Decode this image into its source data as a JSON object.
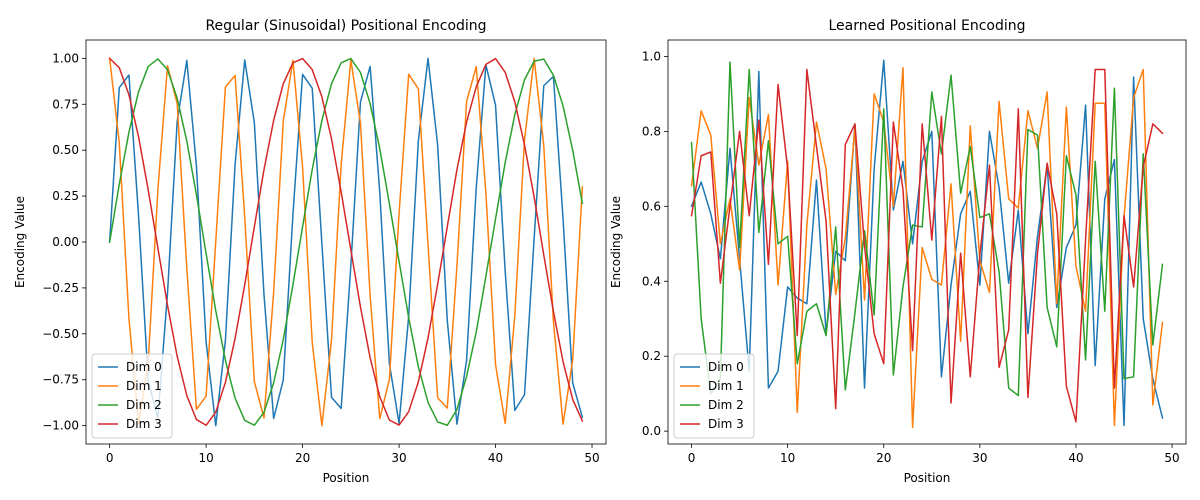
{
  "chart_data": [
    {
      "type": "line",
      "title": "Regular (Sinusoidal) Positional Encoding",
      "xlabel": "Position",
      "ylabel": "Encoding Value",
      "xlim": [
        -2.45,
        51.45
      ],
      "ylim": [
        -1.1,
        1.1
      ],
      "xticks": [
        0,
        10,
        20,
        30,
        40,
        50
      ],
      "yticks": [
        -1.0,
        -0.75,
        -0.5,
        -0.25,
        0.0,
        0.25,
        0.5,
        0.75,
        1.0
      ],
      "xtick_labels": [
        "0",
        "10",
        "20",
        "30",
        "40",
        "50"
      ],
      "ytick_labels": [
        "−1.00",
        "−0.75",
        "−0.50",
        "−0.25",
        "0.00",
        "0.25",
        "0.50",
        "0.75",
        "1.00"
      ],
      "grid": false,
      "legend_position": "lower-left",
      "x": [
        0,
        1,
        2,
        3,
        4,
        5,
        6,
        7,
        8,
        9,
        10,
        11,
        12,
        13,
        14,
        15,
        16,
        17,
        18,
        19,
        20,
        21,
        22,
        23,
        24,
        25,
        26,
        27,
        28,
        29,
        30,
        31,
        32,
        33,
        34,
        35,
        36,
        37,
        38,
        39,
        40,
        41,
        42,
        43,
        44,
        45,
        46,
        47,
        48,
        49
      ],
      "series": [
        {
          "name": "Dim 0",
          "color": "#1f77b4",
          "values": [
            0.0,
            0.841,
            0.909,
            0.141,
            -0.757,
            -0.959,
            -0.279,
            0.657,
            0.989,
            0.412,
            -0.544,
            -1.0,
            -0.537,
            0.42,
            0.991,
            0.65,
            -0.288,
            -0.961,
            -0.751,
            0.15,
            0.913,
            0.837,
            -0.009,
            -0.846,
            -0.906,
            -0.132,
            0.763,
            0.956,
            0.271,
            -0.664,
            -0.988,
            -0.404,
            0.551,
            1.0,
            0.529,
            -0.428,
            -0.992,
            -0.644,
            0.296,
            0.964,
            0.745,
            -0.159,
            -0.917,
            -0.832,
            0.018,
            0.851,
            0.902,
            0.124,
            -0.768,
            -0.954
          ]
        },
        {
          "name": "Dim 1",
          "color": "#ff7f0e",
          "values": [
            1.0,
            0.54,
            -0.416,
            -0.99,
            -0.654,
            0.284,
            0.96,
            0.754,
            -0.146,
            -0.911,
            -0.839,
            0.004,
            0.844,
            0.907,
            0.137,
            -0.76,
            -0.958,
            -0.275,
            0.66,
            0.989,
            0.408,
            -0.548,
            -1.0,
            -0.533,
            0.424,
            0.991,
            0.647,
            -0.292,
            -0.962,
            -0.748,
            0.154,
            0.914,
            0.834,
            -0.013,
            -0.849,
            -0.904,
            -0.128,
            0.765,
            0.955,
            0.267,
            -0.667,
            -0.988,
            -0.4,
            0.555,
            1.0,
            0.525,
            -0.432,
            -0.992,
            -0.64,
            0.3
          ]
        },
        {
          "name": "Dim 2",
          "color": "#2ca02c",
          "values": [
            0.0,
            0.315,
            0.598,
            0.819,
            0.956,
            0.997,
            0.938,
            0.783,
            0.549,
            0.256,
            -0.063,
            -0.374,
            -0.645,
            -0.85,
            -0.971,
            -0.998,
            -0.927,
            -0.767,
            -0.531,
            -0.233,
            0.083,
            0.395,
            0.662,
            0.862,
            0.976,
            0.999,
            0.923,
            0.754,
            0.508,
            0.208,
            -0.105,
            -0.413,
            -0.679,
            -0.873,
            -0.98,
            -0.998,
            -0.912,
            -0.732,
            -0.49,
            -0.186,
            0.126,
            0.432,
            0.694,
            0.883,
            0.985,
            0.996,
            0.908,
            0.741,
            0.499,
            0.21
          ]
        },
        {
          "name": "Dim 3",
          "color": "#d62728",
          "values": [
            1.0,
            0.949,
            0.802,
            0.572,
            0.283,
            -0.032,
            -0.345,
            -0.622,
            -0.837,
            -0.967,
            -0.998,
            -0.927,
            -0.764,
            -0.526,
            -0.234,
            0.083,
            0.395,
            0.662,
            0.862,
            0.976,
            0.999,
            0.939,
            0.791,
            0.561,
            0.272,
            -0.042,
            -0.354,
            -0.63,
            -0.843,
            -0.97,
            -0.997,
            -0.924,
            -0.761,
            -0.523,
            -0.231,
            0.084,
            0.394,
            0.653,
            0.845,
            0.967,
            0.999,
            0.924,
            0.763,
            0.53,
            0.245,
            -0.07,
            -0.378,
            -0.652,
            -0.858,
            -0.975
          ]
        }
      ]
    },
    {
      "type": "line",
      "title": "Learned Positional Encoding",
      "xlabel": "Position",
      "ylabel": "Encoding Value",
      "xlim": [
        -2.45,
        51.45
      ],
      "ylim": [
        -0.0343,
        1.0439
      ],
      "xticks": [
        0,
        10,
        20,
        30,
        40,
        50
      ],
      "yticks": [
        0.0,
        0.2,
        0.4,
        0.6,
        0.8,
        1.0
      ],
      "xtick_labels": [
        "0",
        "10",
        "20",
        "30",
        "40",
        "50"
      ],
      "ytick_labels": [
        "0.0",
        "0.2",
        "0.4",
        "0.6",
        "0.8",
        "1.0"
      ],
      "grid": false,
      "legend_position": "lower-left",
      "x": [
        0,
        1,
        2,
        3,
        4,
        5,
        6,
        7,
        8,
        9,
        10,
        11,
        12,
        13,
        14,
        15,
        16,
        17,
        18,
        19,
        20,
        21,
        22,
        23,
        24,
        25,
        26,
        27,
        28,
        29,
        30,
        31,
        32,
        33,
        34,
        35,
        36,
        37,
        38,
        39,
        40,
        41,
        42,
        43,
        44,
        45,
        46,
        47,
        48,
        49
      ],
      "series": [
        {
          "name": "Dim 0",
          "color": "#1f77b4",
          "values": [
            0.6,
            0.665,
            0.58,
            0.46,
            0.755,
            0.46,
            0.16,
            0.96,
            0.115,
            0.16,
            0.385,
            0.355,
            0.34,
            0.67,
            0.26,
            0.48,
            0.455,
            0.82,
            0.115,
            0.7,
            0.99,
            0.59,
            0.72,
            0.5,
            0.72,
            0.8,
            0.145,
            0.39,
            0.58,
            0.64,
            0.39,
            0.8,
            0.65,
            0.395,
            0.59,
            0.26,
            0.52,
            0.71,
            0.33,
            0.49,
            0.55,
            0.87,
            0.175,
            0.62,
            0.725,
            0.015,
            0.945,
            0.3,
            0.14,
            0.035
          ]
        },
        {
          "name": "Dim 1",
          "color": "#ff7f0e",
          "values": [
            0.655,
            0.855,
            0.79,
            0.5,
            0.62,
            0.43,
            0.89,
            0.71,
            0.845,
            0.39,
            0.72,
            0.05,
            0.55,
            0.825,
            0.7,
            0.365,
            0.515,
            0.81,
            0.35,
            0.9,
            0.825,
            0.6,
            0.97,
            0.01,
            0.49,
            0.405,
            0.39,
            0.66,
            0.24,
            0.815,
            0.455,
            0.37,
            0.88,
            0.62,
            0.595,
            0.855,
            0.755,
            0.905,
            0.34,
            0.865,
            0.44,
            0.32,
            0.875,
            0.875,
            0.015,
            0.57,
            0.89,
            0.965,
            0.07,
            0.29
          ]
        },
        {
          "name": "Dim 2",
          "color": "#2ca02c",
          "values": [
            0.77,
            0.3,
            0.1,
            0.14,
            0.985,
            0.49,
            0.965,
            0.53,
            0.775,
            0.5,
            0.52,
            0.18,
            0.32,
            0.34,
            0.255,
            0.545,
            0.11,
            0.315,
            0.535,
            0.31,
            0.86,
            0.15,
            0.385,
            0.55,
            0.545,
            0.905,
            0.74,
            0.95,
            0.635,
            0.76,
            0.57,
            0.58,
            0.425,
            0.115,
            0.095,
            0.805,
            0.79,
            0.33,
            0.225,
            0.735,
            0.63,
            0.19,
            0.72,
            0.32,
            0.915,
            0.14,
            0.145,
            0.74,
            0.23,
            0.445
          ]
        },
        {
          "name": "Dim 3",
          "color": "#d62728",
          "values": [
            0.575,
            0.735,
            0.745,
            0.395,
            0.6,
            0.8,
            0.575,
            0.83,
            0.445,
            0.925,
            0.7,
            0.255,
            0.965,
            0.76,
            0.56,
            0.06,
            0.765,
            0.82,
            0.495,
            0.26,
            0.18,
            0.825,
            0.645,
            0.215,
            0.82,
            0.51,
            0.84,
            0.075,
            0.475,
            0.145,
            0.47,
            0.71,
            0.17,
            0.27,
            0.86,
            0.09,
            0.475,
            0.715,
            0.58,
            0.12,
            0.025,
            0.51,
            0.965,
            0.965,
            0.115,
            0.575,
            0.385,
            0.705,
            0.82,
            0.795
          ]
        }
      ]
    }
  ]
}
